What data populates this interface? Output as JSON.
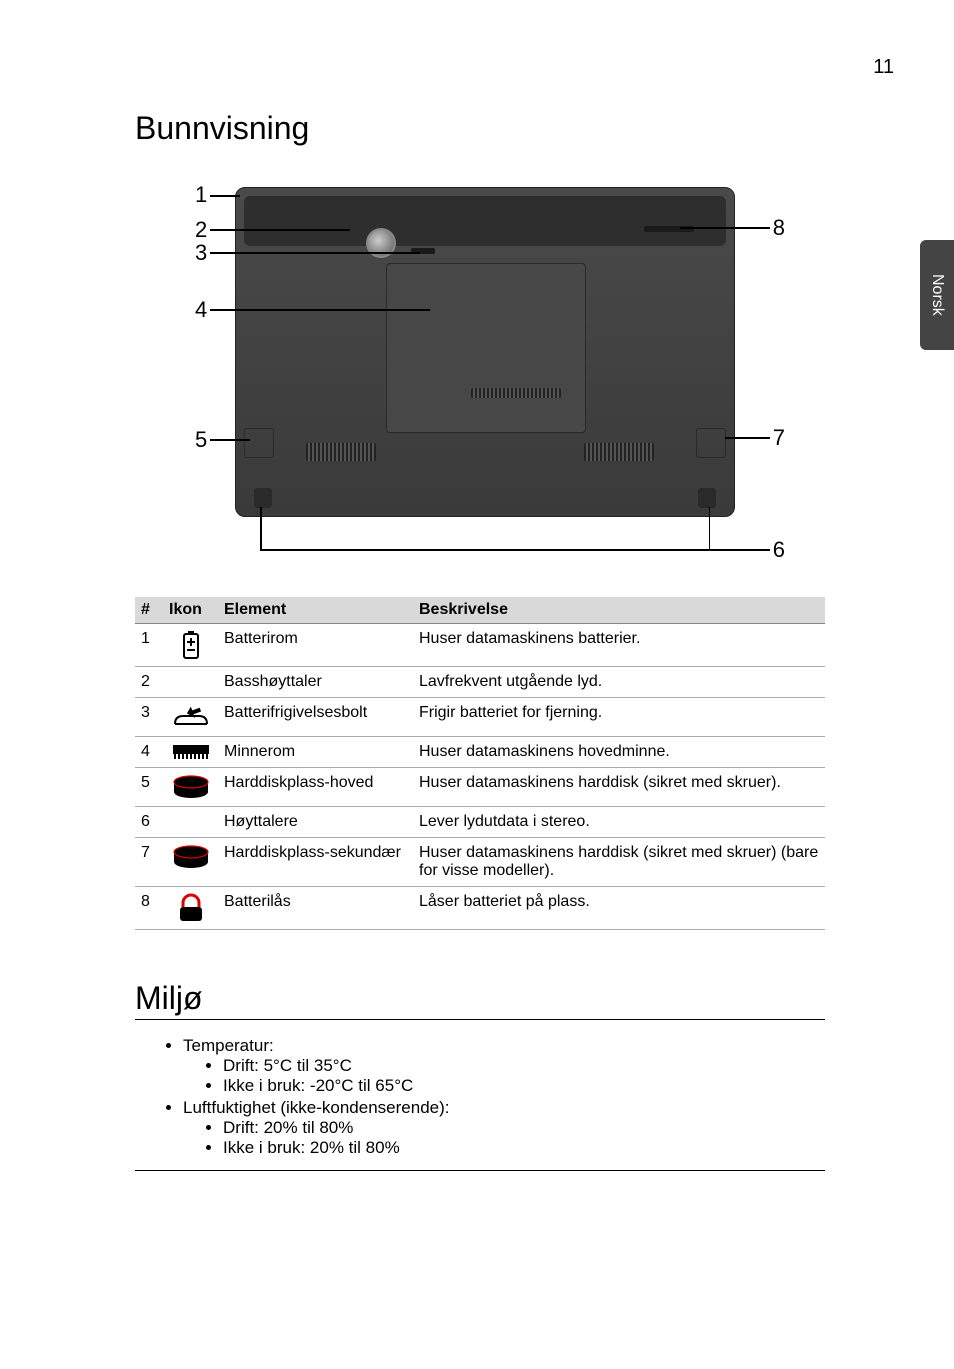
{
  "page_number": "11",
  "side_tab": "Norsk",
  "section_title_1": "Bunnvisning",
  "section_title_2": "Miljø",
  "callouts": {
    "n1": "1",
    "n2": "2",
    "n3": "3",
    "n4": "4",
    "n5": "5",
    "n6": "6",
    "n7": "7",
    "n8": "8"
  },
  "table": {
    "headers": {
      "num": "#",
      "icon": "Ikon",
      "element": "Element",
      "desc": "Beskrivelse"
    },
    "rows": [
      {
        "num": "1",
        "icon": "battery",
        "element": "Batterirom",
        "desc": "Huser datamaskinens batterier."
      },
      {
        "num": "2",
        "icon": "",
        "element": "Basshøyttaler",
        "desc": "Lavfrekvent utgående lyd."
      },
      {
        "num": "3",
        "icon": "release",
        "element": "Batterifrigivelsesbolt",
        "desc": "Frigir batteriet for fjerning."
      },
      {
        "num": "4",
        "icon": "memory",
        "element": "Minnerom",
        "desc": "Huser datamaskinens hovedminne."
      },
      {
        "num": "5",
        "icon": "hdd-black",
        "element": "Harddiskplass-hoved",
        "desc": "Huser datamaskinens harddisk (sikret med skruer)."
      },
      {
        "num": "6",
        "icon": "",
        "element": "Høyttalere",
        "desc": "Lever lydutdata i stereo."
      },
      {
        "num": "7",
        "icon": "hdd-black",
        "element": "Harddiskplass-sekundær",
        "desc": "Huser datamaskinens harddisk (sikret med skruer) (bare for visse modeller)."
      },
      {
        "num": "8",
        "icon": "lock",
        "element": "Batterilås",
        "desc": "Låser batteriet på plass."
      }
    ]
  },
  "env": {
    "item1": "Temperatur:",
    "item1a": "Drift: 5°C til 35°C",
    "item1b": "Ikke i bruk: -20°C til 65°C",
    "item2": "Luftfuktighet (ikke-kondenserende):",
    "item2a": "Drift: 20% til 80%",
    "item2b": "Ikke i bruk: 20% til 80%"
  }
}
